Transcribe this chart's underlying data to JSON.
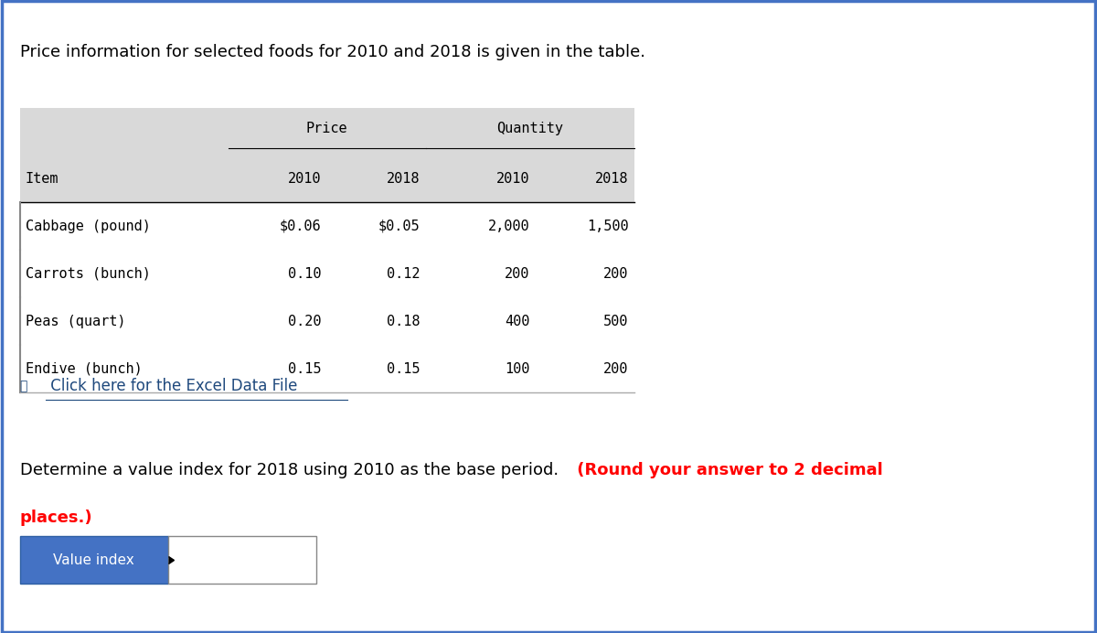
{
  "title": "Price information for selected foods for 2010 and 2018 is given in the table.",
  "table_headers_row1_price": "Price",
  "table_headers_row1_qty": "Quantity",
  "table_headers_row2": [
    "Item",
    "2010",
    "2018",
    "2010",
    "2018"
  ],
  "table_data": [
    [
      "Cabbage (pound)",
      "$0.06",
      "$0.05",
      "2,000",
      "1,500"
    ],
    [
      "Carrots (bunch)",
      "0.10",
      "0.12",
      "200",
      "200"
    ],
    [
      "Peas (quart)",
      "0.20",
      "0.18",
      "400",
      "500"
    ],
    [
      "Endive (bunch)",
      "0.15",
      "0.15",
      "100",
      "200"
    ]
  ],
  "link_text": " Click here for the Excel Data File",
  "question_text_normal": "Determine a value index for 2018 using 2010 as the base period.",
  "question_text_bold_red": " (Round your answer to 2 decimal",
  "question_text_bold_red2": "places.)",
  "label_text": "Value index",
  "border_color": "#4472C4",
  "table_header_bg": "#D9D9D9",
  "link_color": "#1F497D",
  "red_color": "#FF0000",
  "label_bg": "#4472C4",
  "label_text_color": "#FFFFFF",
  "font_family": "monospace",
  "title_fontsize": 13,
  "table_fontsize": 11,
  "question_fontsize": 13
}
